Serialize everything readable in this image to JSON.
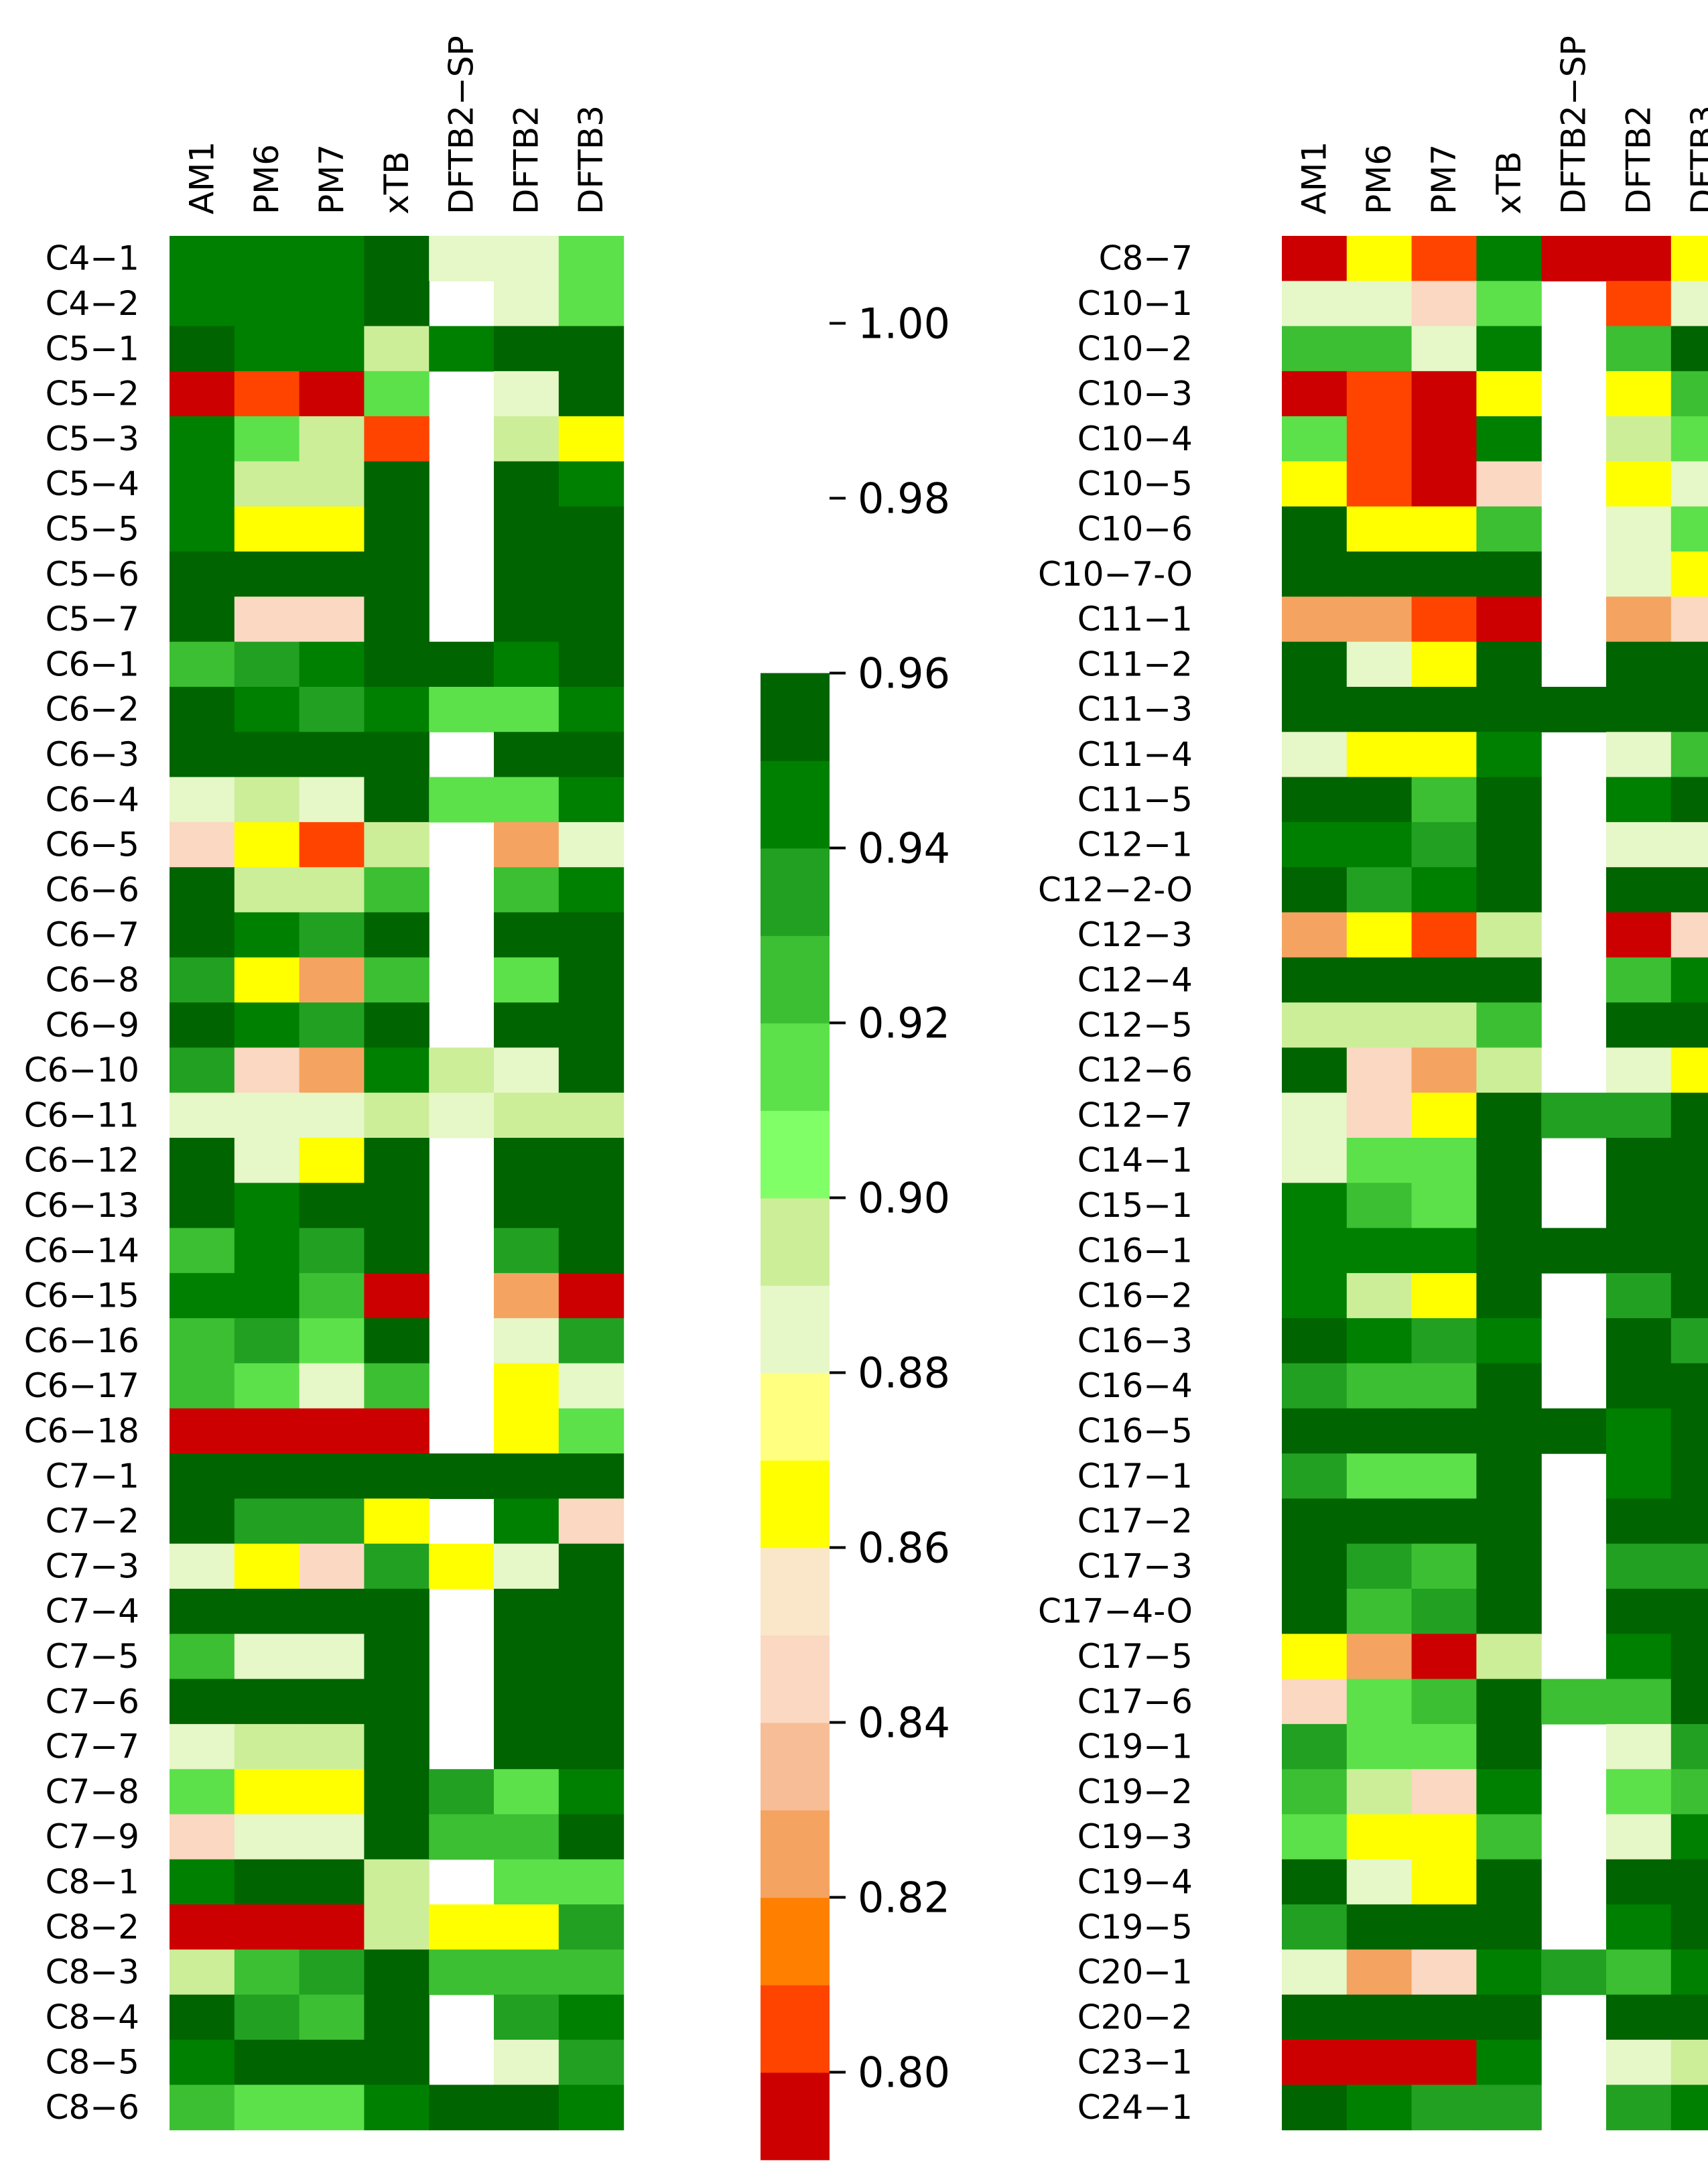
{
  "chart_data": {
    "type": "heatmap",
    "columns": [
      "AM1",
      "PM6",
      "PM7",
      "xTB",
      "DFTB2−SP",
      "DFTB2",
      "DFTB3"
    ],
    "colorbar": {
      "ticks": [
        "0.80",
        "0.82",
        "0.84",
        "0.86",
        "0.88",
        "0.90",
        "0.92",
        "0.94",
        "0.96",
        "0.98",
        "1.00"
      ],
      "range": [
        0.79,
        1.01
      ],
      "colors": {
        "0.79": "#cc0000",
        "0.80": "#ff4400",
        "0.81": "#ff7f00",
        "0.82": "#f4a460",
        "0.83": "#f7bd96",
        "0.84": "#fad8c1",
        "0.85": "#fae6c8",
        "0.86": "#ffff00",
        "0.87": "#ffff80",
        "0.88": "#e6f7c8",
        "0.89": "#ccee99",
        "0.90": "#80ff66",
        "0.91": "#5ce14a",
        "0.92": "#3cbf32",
        "0.93": "#22a022",
        "0.94": "#008000",
        "0.95": "#006400"
      }
    },
    "panels": [
      {
        "rows": [
          "C4−1",
          "C4−2",
          "C5−1",
          "C5−2",
          "C5−3",
          "C5−4",
          "C5−5",
          "C5−6",
          "C5−7",
          "C6−1",
          "C6−2",
          "C6−3",
          "C6−4",
          "C6−5",
          "C6−6",
          "C6−7",
          "C6−8",
          "C6−9",
          "C6−10",
          "C6−11",
          "C6−12",
          "C6−13",
          "C6−14",
          "C6−15",
          "C6−16",
          "C6−17",
          "C6−18",
          "C7−1",
          "C7−2",
          "C7−3",
          "C7−4",
          "C7−5",
          "C7−6",
          "C7−7",
          "C7−8",
          "C7−9",
          "C8−1",
          "C8−2",
          "C8−3",
          "C8−4",
          "C8−5",
          "C8−6"
        ],
        "values": [
          [
            0.94,
            0.94,
            0.94,
            0.965,
            0.885,
            0.885,
            0.915
          ],
          [
            0.94,
            0.94,
            0.94,
            0.955,
            null,
            0.885,
            0.915
          ],
          [
            0.975,
            0.94,
            0.94,
            0.895,
            0.94,
            0.965,
            0.975
          ],
          [
            0.795,
            0.805,
            0.795,
            0.915,
            null,
            0.885,
            0.965
          ],
          [
            0.94,
            0.915,
            0.895,
            0.805,
            null,
            0.895,
            0.865
          ],
          [
            0.94,
            0.895,
            0.895,
            0.985,
            null,
            0.955,
            0.94
          ],
          [
            0.94,
            0.865,
            0.865,
            0.985,
            null,
            0.955,
            0.975
          ],
          [
            0.965,
            0.965,
            0.975,
            0.975,
            null,
            0.975,
            0.965
          ],
          [
            0.975,
            0.845,
            0.845,
            0.955,
            null,
            0.955,
            0.955
          ],
          [
            0.925,
            0.935,
            0.94,
            0.975,
            0.955,
            0.94,
            0.955
          ],
          [
            0.965,
            0.94,
            0.935,
            0.94,
            0.915,
            0.915,
            0.94
          ],
          [
            0.965,
            0.965,
            0.965,
            0.975,
            null,
            0.975,
            0.965
          ],
          [
            0.885,
            0.895,
            0.885,
            0.965,
            0.915,
            0.915,
            0.94
          ],
          [
            0.845,
            0.865,
            0.805,
            0.895,
            null,
            0.825,
            0.885
          ],
          [
            0.965,
            0.895,
            0.895,
            0.925,
            null,
            0.925,
            0.94
          ],
          [
            0.975,
            0.94,
            0.935,
            0.975,
            null,
            0.965,
            0.975
          ],
          [
            0.935,
            0.865,
            0.825,
            0.925,
            null,
            0.915,
            0.955
          ],
          [
            0.965,
            0.94,
            0.935,
            0.975,
            null,
            0.975,
            0.975
          ],
          [
            0.935,
            0.845,
            0.825,
            0.94,
            0.895,
            0.885,
            0.955
          ],
          [
            0.885,
            0.885,
            0.885,
            0.895,
            0.885,
            0.895,
            0.895
          ],
          [
            0.955,
            0.885,
            0.865,
            0.965,
            null,
            0.965,
            0.965
          ],
          [
            0.965,
            0.94,
            0.955,
            0.985,
            null,
            0.965,
            0.965
          ],
          [
            0.925,
            0.94,
            0.935,
            0.965,
            null,
            0.935,
            0.985
          ],
          [
            0.94,
            0.94,
            0.925,
            0.795,
            null,
            0.825,
            0.795
          ],
          [
            0.925,
            0.935,
            0.915,
            0.975,
            null,
            0.885,
            0.935
          ],
          [
            0.925,
            0.915,
            0.885,
            0.925,
            null,
            0.865,
            0.885
          ],
          [
            0.795,
            0.795,
            0.795,
            0.795,
            null,
            0.865,
            0.915
          ],
          [
            0.955,
            0.965,
            0.965,
            0.975,
            0.985,
            0.985,
            0.975
          ],
          [
            0.955,
            0.935,
            0.935,
            0.865,
            null,
            0.94,
            0.845
          ],
          [
            0.885,
            0.865,
            0.845,
            0.935,
            0.865,
            0.885,
            0.955
          ],
          [
            0.985,
            0.975,
            0.975,
            0.985,
            null,
            0.965,
            0.955
          ],
          [
            0.925,
            0.885,
            0.885,
            0.955,
            null,
            0.955,
            0.965
          ],
          [
            0.965,
            0.965,
            0.965,
            0.985,
            null,
            0.985,
            0.985
          ],
          [
            0.885,
            0.895,
            0.895,
            0.975,
            null,
            0.955,
            0.955
          ],
          [
            0.915,
            0.865,
            0.865,
            0.965,
            0.935,
            0.915,
            0.94
          ],
          [
            0.845,
            0.885,
            0.885,
            0.995,
            0.925,
            0.925,
            0.955
          ],
          [
            0.94,
            0.975,
            0.955,
            0.895,
            null,
            0.915,
            0.915
          ],
          [
            0.795,
            0.795,
            0.795,
            0.895,
            0.865,
            0.865,
            0.935
          ],
          [
            0.895,
            0.925,
            0.935,
            0.965,
            0.925,
            0.925,
            0.925
          ],
          [
            0.955,
            0.935,
            0.925,
            0.985,
            null,
            0.935,
            0.94
          ],
          [
            0.94,
            0.955,
            0.955,
            0.955,
            null,
            0.885,
            0.935
          ],
          [
            0.925,
            0.915,
            0.915,
            0.94,
            0.955,
            0.955,
            0.94
          ]
        ]
      },
      {
        "rows": [
          "C8−7",
          "C10−1",
          "C10−2",
          "C10−3",
          "C10−4",
          "C10−5",
          "C10−6",
          "C10−7-O",
          "C11−1",
          "C11−2",
          "C11−3",
          "C11−4",
          "C11−5",
          "C12−1",
          "C12−2-O",
          "C12−3",
          "C12−4",
          "C12−5",
          "C12−6",
          "C12−7",
          "C14−1",
          "C15−1",
          "C16−1",
          "C16−2",
          "C16−3",
          "C16−4",
          "C16−5",
          "C17−1",
          "C17−2",
          "C17−3",
          "C17−4-O",
          "C17−5",
          "C17−6",
          "C19−1",
          "C19−2",
          "C19−3",
          "C19−4",
          "C19−5",
          "C20−1",
          "C20−2",
          "C23−1",
          "C24−1"
        ],
        "values": [
          [
            0.795,
            0.865,
            0.805,
            0.94,
            0.795,
            0.795,
            0.865
          ],
          [
            0.885,
            0.885,
            0.845,
            0.915,
            null,
            0.805,
            0.885
          ],
          [
            0.925,
            0.925,
            0.885,
            0.94,
            null,
            0.925,
            0.955
          ],
          [
            0.795,
            0.805,
            0.795,
            0.865,
            null,
            0.865,
            0.925
          ],
          [
            0.915,
            0.805,
            0.795,
            0.94,
            null,
            0.895,
            0.915
          ],
          [
            0.865,
            0.805,
            0.795,
            0.845,
            null,
            0.865,
            0.885
          ],
          [
            0.955,
            0.865,
            0.865,
            0.925,
            null,
            0.885,
            0.915
          ],
          [
            0.975,
            0.965,
            0.975,
            0.985,
            null,
            0.885,
            0.865
          ],
          [
            0.825,
            0.825,
            0.805,
            0.795,
            null,
            0.825,
            0.845
          ],
          [
            0.955,
            0.885,
            0.865,
            0.955,
            null,
            0.965,
            0.975
          ],
          [
            0.955,
            0.965,
            0.965,
            0.985,
            0.955,
            0.965,
            0.965
          ],
          [
            0.885,
            0.865,
            0.865,
            0.94,
            null,
            0.885,
            0.925
          ],
          [
            0.975,
            0.975,
            0.925,
            0.985,
            null,
            0.94,
            0.955
          ],
          [
            0.94,
            0.94,
            0.935,
            0.955,
            null,
            0.885,
            0.885
          ],
          [
            0.975,
            0.935,
            0.94,
            0.985,
            null,
            0.965,
            0.965
          ],
          [
            0.825,
            0.865,
            0.805,
            0.895,
            null,
            0.795,
            0.845
          ],
          [
            0.975,
            0.975,
            0.975,
            0.955,
            null,
            0.925,
            0.94
          ],
          [
            0.895,
            0.895,
            0.895,
            0.925,
            null,
            0.955,
            0.955
          ],
          [
            0.955,
            0.845,
            0.825,
            0.895,
            null,
            0.885,
            0.865
          ],
          [
            0.885,
            0.845,
            0.865,
            0.985,
            0.935,
            0.935,
            0.975
          ],
          [
            0.885,
            0.915,
            0.915,
            0.975,
            null,
            0.965,
            0.975
          ],
          [
            0.94,
            0.925,
            0.915,
            0.985,
            null,
            0.965,
            0.985
          ],
          [
            0.94,
            0.94,
            0.94,
            0.985,
            0.975,
            0.975,
            0.985
          ],
          [
            0.94,
            0.895,
            0.865,
            0.955,
            null,
            0.935,
            0.955
          ],
          [
            0.965,
            0.94,
            0.935,
            0.94,
            null,
            0.955,
            0.935
          ],
          [
            0.935,
            0.925,
            0.925,
            0.975,
            null,
            0.955,
            0.955
          ],
          [
            0.955,
            0.955,
            0.955,
            0.985,
            0.965,
            0.94,
            0.965
          ],
          [
            0.935,
            0.915,
            0.915,
            0.965,
            null,
            0.94,
            0.965
          ],
          [
            0.965,
            0.965,
            0.965,
            0.975,
            null,
            0.985,
            0.995
          ],
          [
            0.955,
            0.935,
            0.925,
            0.975,
            null,
            0.935,
            0.935
          ],
          [
            0.975,
            0.925,
            0.935,
            0.975,
            null,
            0.995,
            0.995
          ],
          [
            0.865,
            0.825,
            0.795,
            0.895,
            null,
            0.94,
            0.965
          ],
          [
            0.845,
            0.915,
            0.925,
            0.985,
            0.925,
            0.925,
            0.965
          ],
          [
            0.935,
            0.915,
            0.915,
            0.975,
            null,
            0.885,
            0.935
          ],
          [
            0.925,
            0.895,
            0.845,
            0.94,
            null,
            0.915,
            0.925
          ],
          [
            0.915,
            0.865,
            0.865,
            0.925,
            null,
            0.885,
            0.94
          ],
          [
            0.955,
            0.885,
            0.865,
            0.975,
            null,
            0.965,
            0.985
          ],
          [
            0.935,
            0.965,
            0.965,
            0.975,
            null,
            0.94,
            0.955
          ],
          [
            0.885,
            0.825,
            0.845,
            0.94,
            0.935,
            0.925,
            0.94
          ],
          [
            0.975,
            0.985,
            0.975,
            0.985,
            null,
            0.985,
            0.985
          ],
          [
            0.795,
            0.795,
            0.795,
            0.94,
            null,
            0.885,
            0.895
          ],
          [
            0.955,
            0.94,
            0.935,
            0.935,
            null,
            0.935,
            0.94
          ]
        ]
      }
    ]
  }
}
